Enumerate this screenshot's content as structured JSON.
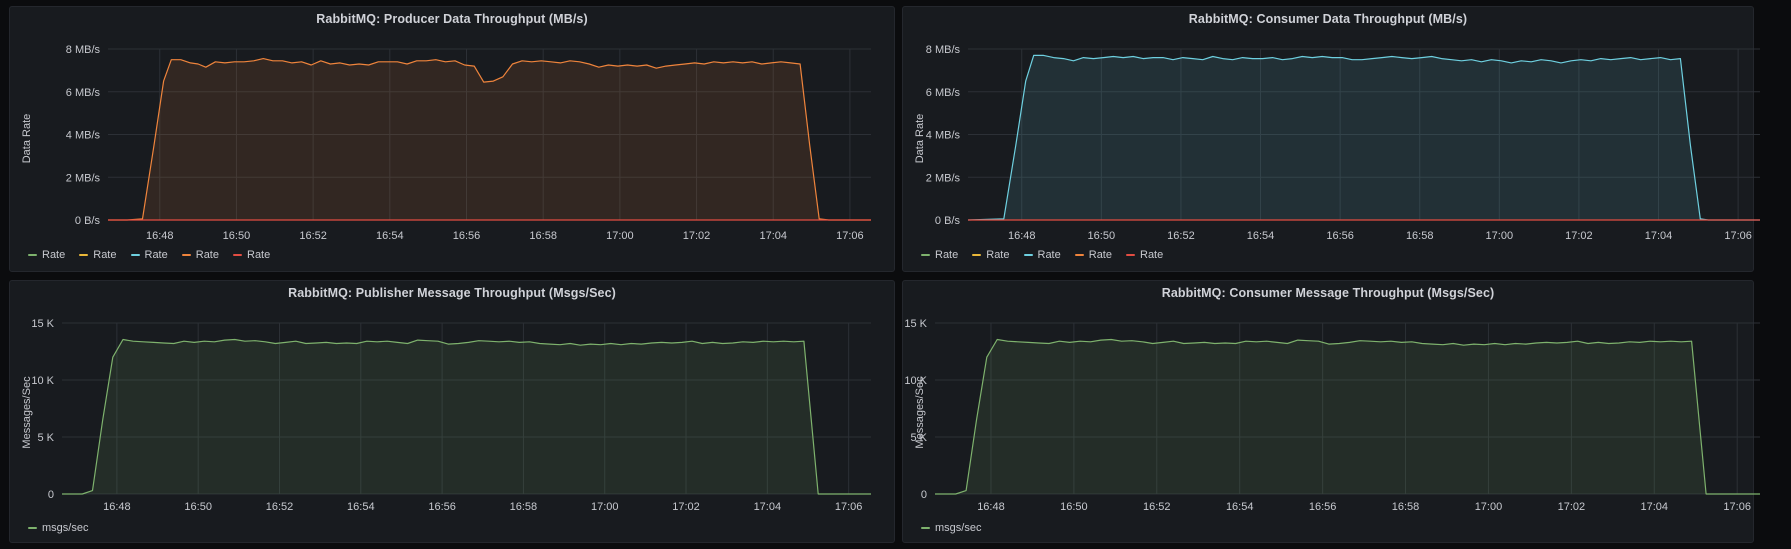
{
  "chart_data": [
    {
      "type": "area",
      "title": "RabbitMQ: Producer Data Throughput (MB/s)",
      "ylabel": "Data Rate",
      "y_ticks": [
        "0 B/s",
        "2 MB/s",
        "4 MB/s",
        "6 MB/s",
        "8 MB/s"
      ],
      "y_tick_values": [
        0,
        2,
        4,
        6,
        8
      ],
      "ylim": [
        0,
        8
      ],
      "x_ticks": [
        "16:48",
        "16:50",
        "16:52",
        "16:54",
        "16:56",
        "16:58",
        "17:00",
        "17:02",
        "17:04",
        "17:06"
      ],
      "x_tick_minutes": [
        -10,
        -8,
        -6,
        -4,
        -2,
        0,
        2,
        4,
        6,
        8
      ],
      "xlim_minutes": [
        -11.35,
        8.55
      ],
      "grid": true,
      "legend_placement": "bottom-left",
      "legend": [
        {
          "name": "Rate",
          "color": "#7eb26d"
        },
        {
          "name": "Rate",
          "color": "#eab839"
        },
        {
          "name": "Rate",
          "color": "#6ed0e0"
        },
        {
          "name": "Rate",
          "color": "#ef843c"
        },
        {
          "name": "Rate",
          "color": "#e24d42"
        }
      ],
      "series": [
        {
          "color": "#ef843c",
          "fill": true,
          "x_minutes": [
            -11.35,
            -10.85,
            -10.45,
            -10.15,
            -9.9,
            -9.7,
            -9.45,
            -9.2,
            -9.0,
            -8.8,
            -8.55,
            -8.3,
            -8.05,
            -7.8,
            -7.55,
            -7.3,
            -7.05,
            -6.8,
            -6.55,
            -6.3,
            -6.05,
            -5.8,
            -5.55,
            -5.3,
            -5.05,
            -4.8,
            -4.55,
            -4.3,
            -4.05,
            -3.8,
            -3.55,
            -3.3,
            -3.05,
            -2.8,
            -2.55,
            -2.3,
            -2.05,
            -1.8,
            -1.55,
            -1.3,
            -1.05,
            -0.8,
            -0.55,
            -0.3,
            -0.05,
            0.2,
            0.45,
            0.7,
            0.95,
            1.2,
            1.45,
            1.7,
            1.95,
            2.2,
            2.45,
            2.7,
            2.95,
            3.2,
            3.45,
            3.7,
            3.95,
            4.2,
            4.45,
            4.7,
            4.95,
            5.2,
            5.45,
            5.7,
            5.95,
            6.2,
            6.45,
            6.7,
            6.95,
            7.2,
            7.45,
            7.7,
            7.95,
            8.55
          ],
          "values": [
            0,
            0,
            0.05,
            3.5,
            6.5,
            7.5,
            7.5,
            7.35,
            7.3,
            7.15,
            7.4,
            7.35,
            7.4,
            7.4,
            7.45,
            7.55,
            7.45,
            7.45,
            7.35,
            7.4,
            7.25,
            7.45,
            7.3,
            7.35,
            7.25,
            7.3,
            7.25,
            7.4,
            7.4,
            7.4,
            7.3,
            7.45,
            7.45,
            7.5,
            7.4,
            7.45,
            7.25,
            7.2,
            6.45,
            6.5,
            6.7,
            7.3,
            7.45,
            7.4,
            7.45,
            7.4,
            7.35,
            7.45,
            7.4,
            7.3,
            7.15,
            7.25,
            7.2,
            7.25,
            7.2,
            7.25,
            7.1,
            7.2,
            7.25,
            7.3,
            7.35,
            7.3,
            7.4,
            7.35,
            7.4,
            7.35,
            7.4,
            7.3,
            7.35,
            7.4,
            7.35,
            7.3,
            3.5,
            0.05,
            0,
            0,
            0,
            0
          ]
        },
        {
          "color": "#e24d42",
          "fill": false,
          "x_minutes": [
            -11.35,
            8.55
          ],
          "values": [
            0,
            0
          ]
        }
      ]
    },
    {
      "type": "area",
      "title": "RabbitMQ: Consumer Data Throughput (MB/s)",
      "ylabel": "Data Rate",
      "y_ticks": [
        "0 B/s",
        "2 MB/s",
        "4 MB/s",
        "6 MB/s",
        "8 MB/s"
      ],
      "y_tick_values": [
        0,
        2,
        4,
        6,
        8
      ],
      "ylim": [
        0,
        8
      ],
      "x_ticks": [
        "16:48",
        "16:50",
        "16:52",
        "16:54",
        "16:56",
        "16:58",
        "17:00",
        "17:02",
        "17:04",
        "17:06"
      ],
      "x_tick_minutes": [
        -10,
        -8,
        -6,
        -4,
        -2,
        0,
        2,
        4,
        6,
        8
      ],
      "xlim_minutes": [
        -11.35,
        8.55
      ],
      "grid": true,
      "legend_placement": "bottom-left",
      "legend": [
        {
          "name": "Rate",
          "color": "#7eb26d"
        },
        {
          "name": "Rate",
          "color": "#eab839"
        },
        {
          "name": "Rate",
          "color": "#6ed0e0"
        },
        {
          "name": "Rate",
          "color": "#ef843c"
        },
        {
          "name": "Rate",
          "color": "#e24d42"
        }
      ],
      "series": [
        {
          "color": "#6ed0e0",
          "fill": true,
          "x_minutes": [
            -11.35,
            -10.45,
            -10.15,
            -9.9,
            -9.7,
            -9.45,
            -9.2,
            -8.95,
            -8.7,
            -8.45,
            -8.2,
            -7.95,
            -7.7,
            -7.45,
            -7.2,
            -6.95,
            -6.7,
            -6.45,
            -6.2,
            -5.95,
            -5.7,
            -5.45,
            -5.2,
            -4.95,
            -4.7,
            -4.45,
            -4.2,
            -3.95,
            -3.7,
            -3.45,
            -3.2,
            -2.95,
            -2.7,
            -2.45,
            -2.2,
            -1.95,
            -1.7,
            -1.45,
            -1.2,
            -0.95,
            -0.7,
            -0.45,
            -0.2,
            0.05,
            0.3,
            0.55,
            0.8,
            1.05,
            1.3,
            1.55,
            1.8,
            2.05,
            2.3,
            2.55,
            2.8,
            3.05,
            3.3,
            3.55,
            3.8,
            4.05,
            4.3,
            4.55,
            4.8,
            5.05,
            5.3,
            5.55,
            5.8,
            6.05,
            6.3,
            6.55,
            6.8,
            7.05,
            7.25,
            8.55
          ],
          "values": [
            0,
            0.05,
            3.5,
            6.5,
            7.7,
            7.7,
            7.6,
            7.55,
            7.45,
            7.6,
            7.55,
            7.6,
            7.65,
            7.6,
            7.65,
            7.55,
            7.6,
            7.6,
            7.5,
            7.6,
            7.55,
            7.5,
            7.65,
            7.55,
            7.5,
            7.6,
            7.55,
            7.55,
            7.6,
            7.5,
            7.55,
            7.65,
            7.6,
            7.65,
            7.6,
            7.6,
            7.5,
            7.5,
            7.55,
            7.6,
            7.65,
            7.6,
            7.55,
            7.6,
            7.65,
            7.55,
            7.5,
            7.45,
            7.5,
            7.4,
            7.5,
            7.45,
            7.35,
            7.45,
            7.4,
            7.5,
            7.45,
            7.35,
            7.45,
            7.5,
            7.45,
            7.55,
            7.5,
            7.55,
            7.6,
            7.5,
            7.55,
            7.6,
            7.5,
            7.55,
            3.5,
            0.05,
            0,
            0
          ]
        },
        {
          "color": "#e24d42",
          "fill": false,
          "x_minutes": [
            -11.35,
            8.55
          ],
          "values": [
            0,
            0
          ]
        }
      ]
    },
    {
      "type": "area",
      "title": "RabbitMQ: Publisher Message Throughput (Msgs/Sec)",
      "ylabel": "Messages/Sec",
      "y_ticks": [
        "0",
        "5 K",
        "10 K",
        "15 K"
      ],
      "y_tick_values": [
        0,
        5000,
        10000,
        15000
      ],
      "ylim": [
        0,
        15000
      ],
      "x_ticks": [
        "16:48",
        "16:50",
        "16:52",
        "16:54",
        "16:56",
        "16:58",
        "17:00",
        "17:02",
        "17:04",
        "17:06"
      ],
      "x_tick_minutes": [
        -10,
        -8,
        -6,
        -4,
        -2,
        0,
        2,
        4,
        6,
        8
      ],
      "xlim_minutes": [
        -11.35,
        8.55
      ],
      "grid": true,
      "legend_placement": "bottom-left",
      "legend": [
        {
          "name": "msgs/sec",
          "color": "#7eb26d"
        }
      ],
      "series": [
        {
          "color": "#7eb26d",
          "fill": true,
          "x_minutes": [
            -11.35,
            -10.85,
            -10.6,
            -10.35,
            -10.1,
            -9.85,
            -9.6,
            -9.35,
            -9.1,
            -8.85,
            -8.6,
            -8.35,
            -8.1,
            -7.85,
            -7.6,
            -7.35,
            -7.1,
            -6.85,
            -6.6,
            -6.35,
            -6.1,
            -5.85,
            -5.6,
            -5.35,
            -5.1,
            -4.85,
            -4.6,
            -4.35,
            -4.1,
            -3.85,
            -3.6,
            -3.35,
            -3.1,
            -2.85,
            -2.6,
            -2.35,
            -2.1,
            -1.85,
            -1.6,
            -1.35,
            -1.1,
            -0.85,
            -0.6,
            -0.35,
            -0.1,
            0.15,
            0.4,
            0.65,
            0.9,
            1.15,
            1.4,
            1.65,
            1.9,
            2.15,
            2.4,
            2.65,
            2.9,
            3.15,
            3.4,
            3.65,
            3.9,
            4.15,
            4.4,
            4.65,
            4.9,
            5.15,
            5.4,
            5.65,
            5.9,
            6.15,
            6.4,
            6.65,
            6.9,
            7.25,
            7.55,
            8.0,
            8.55
          ],
          "values": [
            0,
            0,
            300,
            6500,
            12000,
            13550,
            13400,
            13350,
            13300,
            13250,
            13200,
            13400,
            13300,
            13400,
            13350,
            13500,
            13550,
            13400,
            13450,
            13350,
            13200,
            13300,
            13400,
            13200,
            13250,
            13300,
            13200,
            13250,
            13200,
            13400,
            13350,
            13400,
            13300,
            13200,
            13500,
            13450,
            13400,
            13150,
            13200,
            13300,
            13450,
            13400,
            13350,
            13400,
            13300,
            13350,
            13200,
            13150,
            13100,
            13200,
            13050,
            13150,
            13100,
            13200,
            13100,
            13200,
            13150,
            13250,
            13300,
            13250,
            13300,
            13400,
            13200,
            13300,
            13200,
            13250,
            13350,
            13300,
            13400,
            13350,
            13400,
            13350,
            13400,
            0,
            0,
            0,
            0
          ]
        }
      ]
    },
    {
      "type": "area",
      "title": "RabbitMQ: Consumer Message Throughput (Msgs/Sec)",
      "ylabel": "Messages/Sec",
      "y_ticks": [
        "0",
        "5 K",
        "10 K",
        "15 K"
      ],
      "y_tick_values": [
        0,
        5000,
        10000,
        15000
      ],
      "ylim": [
        0,
        15000
      ],
      "x_ticks": [
        "16:48",
        "16:50",
        "16:52",
        "16:54",
        "16:56",
        "16:58",
        "17:00",
        "17:02",
        "17:04",
        "17:06"
      ],
      "x_tick_minutes": [
        -10,
        -8,
        -6,
        -4,
        -2,
        0,
        2,
        4,
        6,
        8
      ],
      "xlim_minutes": [
        -11.35,
        8.55
      ],
      "grid": true,
      "legend_placement": "bottom-left",
      "legend": [
        {
          "name": "msgs/sec",
          "color": "#7eb26d"
        }
      ],
      "series": [
        {
          "color": "#7eb26d",
          "fill": true,
          "x_minutes": [
            -11.35,
            -10.85,
            -10.6,
            -10.35,
            -10.1,
            -9.85,
            -9.6,
            -9.35,
            -9.1,
            -8.85,
            -8.6,
            -8.35,
            -8.1,
            -7.85,
            -7.6,
            -7.35,
            -7.1,
            -6.85,
            -6.6,
            -6.35,
            -6.1,
            -5.85,
            -5.6,
            -5.35,
            -5.1,
            -4.85,
            -4.6,
            -4.35,
            -4.1,
            -3.85,
            -3.6,
            -3.35,
            -3.1,
            -2.85,
            -2.6,
            -2.35,
            -2.1,
            -1.85,
            -1.6,
            -1.35,
            -1.1,
            -0.85,
            -0.6,
            -0.35,
            -0.1,
            0.15,
            0.4,
            0.65,
            0.9,
            1.15,
            1.4,
            1.65,
            1.9,
            2.15,
            2.4,
            2.65,
            2.9,
            3.15,
            3.4,
            3.65,
            3.9,
            4.15,
            4.4,
            4.65,
            4.9,
            5.15,
            5.4,
            5.65,
            5.9,
            6.15,
            6.4,
            6.65,
            6.9,
            7.25,
            7.55,
            8.0,
            8.55
          ],
          "values": [
            0,
            0,
            300,
            6500,
            12000,
            13550,
            13400,
            13350,
            13300,
            13250,
            13200,
            13400,
            13300,
            13400,
            13350,
            13500,
            13550,
            13400,
            13450,
            13350,
            13200,
            13300,
            13400,
            13200,
            13250,
            13300,
            13200,
            13250,
            13200,
            13400,
            13350,
            13400,
            13300,
            13200,
            13500,
            13450,
            13400,
            13150,
            13200,
            13300,
            13450,
            13400,
            13350,
            13400,
            13300,
            13350,
            13200,
            13150,
            13100,
            13200,
            13050,
            13150,
            13100,
            13200,
            13100,
            13200,
            13150,
            13250,
            13300,
            13250,
            13300,
            13400,
            13200,
            13300,
            13200,
            13250,
            13350,
            13300,
            13400,
            13350,
            13400,
            13350,
            13400,
            0,
            0,
            0,
            0
          ]
        }
      ]
    }
  ]
}
